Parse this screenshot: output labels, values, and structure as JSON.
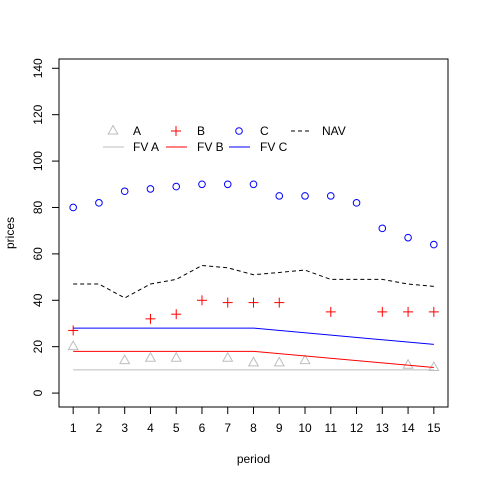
{
  "chart_data": {
    "type": "scatter",
    "xlabel": "period",
    "ylabel": "prices",
    "xlim": [
      0.45,
      15.55
    ],
    "ylim": [
      -6,
      144
    ],
    "x_ticks": [
      1,
      2,
      3,
      4,
      5,
      6,
      7,
      8,
      9,
      10,
      11,
      12,
      13,
      14,
      15
    ],
    "y_ticks": [
      0,
      20,
      40,
      60,
      80,
      100,
      120,
      140
    ],
    "grid": false,
    "legend_position": "top-left",
    "series": [
      {
        "name": "A",
        "kind": "points",
        "marker": "triangle",
        "color": "#bebebe",
        "points": [
          [
            1,
            20
          ],
          [
            3,
            14
          ],
          [
            4,
            15
          ],
          [
            5,
            15
          ],
          [
            7,
            15
          ],
          [
            8,
            13
          ],
          [
            9,
            13
          ],
          [
            10,
            14
          ],
          [
            14,
            12
          ],
          [
            15,
            11
          ]
        ]
      },
      {
        "name": "B",
        "kind": "points",
        "marker": "plus",
        "color": "#ff0000",
        "points": [
          [
            1,
            27
          ],
          [
            4,
            32
          ],
          [
            5,
            34
          ],
          [
            6,
            40
          ],
          [
            7,
            39
          ],
          [
            8,
            39
          ],
          [
            9,
            39
          ],
          [
            11,
            35
          ],
          [
            13,
            35
          ],
          [
            14,
            35
          ],
          [
            15,
            35
          ]
        ]
      },
      {
        "name": "C",
        "kind": "points",
        "marker": "circle",
        "color": "#0000ff",
        "points": [
          [
            1,
            80
          ],
          [
            2,
            82
          ],
          [
            3,
            87
          ],
          [
            4,
            88
          ],
          [
            5,
            89
          ],
          [
            6,
            90
          ],
          [
            7,
            90
          ],
          [
            8,
            90
          ],
          [
            9,
            85
          ],
          [
            10,
            85
          ],
          [
            11,
            85
          ],
          [
            12,
            82
          ],
          [
            13,
            71
          ],
          [
            14,
            67
          ],
          [
            15,
            64
          ]
        ]
      },
      {
        "name": "NAV",
        "kind": "line",
        "dash": "4,3",
        "color": "#000000",
        "points": [
          [
            1,
            47
          ],
          [
            2,
            47
          ],
          [
            3,
            41
          ],
          [
            4,
            47
          ],
          [
            5,
            49
          ],
          [
            6,
            55
          ],
          [
            7,
            54
          ],
          [
            8,
            51
          ],
          [
            9,
            52
          ],
          [
            10,
            53
          ],
          [
            11,
            49
          ],
          [
            12,
            49
          ],
          [
            13,
            49
          ],
          [
            14,
            47
          ],
          [
            15,
            46
          ]
        ]
      },
      {
        "name": "FV A",
        "kind": "line",
        "dash": "",
        "color": "#bebebe",
        "points": [
          [
            1,
            10
          ],
          [
            2,
            10
          ],
          [
            3,
            10
          ],
          [
            4,
            10
          ],
          [
            5,
            10
          ],
          [
            6,
            10
          ],
          [
            7,
            10
          ],
          [
            8,
            10
          ],
          [
            9,
            10
          ],
          [
            10,
            10
          ],
          [
            11,
            10
          ],
          [
            12,
            10
          ],
          [
            13,
            10
          ],
          [
            14,
            10
          ],
          [
            15,
            10
          ]
        ]
      },
      {
        "name": "FV B",
        "kind": "line",
        "dash": "",
        "color": "#ff0000",
        "points": [
          [
            1,
            18
          ],
          [
            8,
            18
          ],
          [
            15,
            11
          ]
        ]
      },
      {
        "name": "FV C",
        "kind": "line",
        "dash": "",
        "color": "#0000ff",
        "points": [
          [
            1,
            28
          ],
          [
            8,
            28
          ],
          [
            15,
            21
          ]
        ]
      }
    ],
    "legend": [
      {
        "label": "A",
        "marker": "triangle",
        "color": "#bebebe"
      },
      {
        "label": "B",
        "marker": "plus",
        "color": "#ff0000"
      },
      {
        "label": "C",
        "marker": "circle",
        "color": "#0000ff"
      },
      {
        "label": "NAV",
        "marker": "dashed-line",
        "color": "#000000"
      },
      {
        "label": "FV A",
        "marker": "line",
        "color": "#bebebe"
      },
      {
        "label": "FV B",
        "marker": "line",
        "color": "#ff0000"
      },
      {
        "label": "FV C",
        "marker": "line",
        "color": "#0000ff"
      }
    ]
  }
}
